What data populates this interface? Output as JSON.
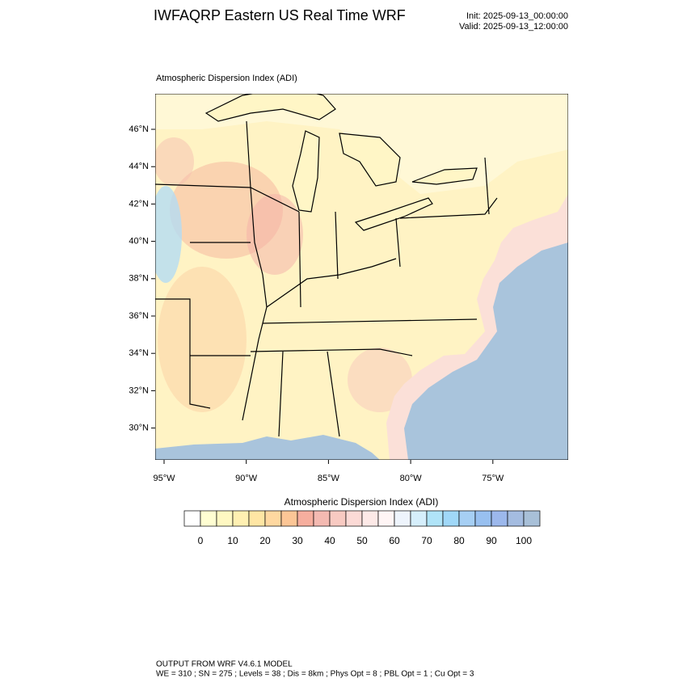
{
  "header": {
    "title": "IWFAQRP Eastern US Real Time WRF",
    "init": "Init: 2025-09-13_00:00:00",
    "valid": "Valid: 2025-09-13_12:00:00"
  },
  "map": {
    "subtitle": "Atmospheric Dispersion Index   (ADI)",
    "lat_labels": [
      "46°N",
      "44°N",
      "42°N",
      "40°N",
      "38°N",
      "36°N",
      "34°N",
      "32°N",
      "30°N"
    ],
    "lon_labels": [
      "95°W",
      "90°W",
      "85°W",
      "80°W",
      "75°W"
    ]
  },
  "colorbar": {
    "title": "Atmospheric Dispersion Index (ADI)",
    "ticks": [
      0,
      10,
      20,
      30,
      40,
      50,
      60,
      70,
      80,
      90,
      100
    ],
    "colors": [
      "#ffffff",
      "#fffed2",
      "#fff8c2",
      "#fff0b2",
      "#ffe6a4",
      "#ffd8a0",
      "#fcc696",
      "#f6ae9e",
      "#f4bab2",
      "#f8cac2",
      "#fcdad6",
      "#fde9e7",
      "#fff5f5",
      "#eef4fc",
      "#d6effc",
      "#b0e4f8",
      "#a0d8f8",
      "#a6cff4",
      "#98c0f0",
      "#9cb8ec",
      "#a4bce0",
      "#a8c0d8"
    ]
  },
  "footer": {
    "lines": [
      "OUTPUT FROM WRF V4.6.1 MODEL",
      "WE = 310 ; SN = 275 ; Levels = 38 ; Dis = 8km ; Phys Opt = 8 ; PBL Opt = 1 ; Cu Opt = 3"
    ]
  }
}
